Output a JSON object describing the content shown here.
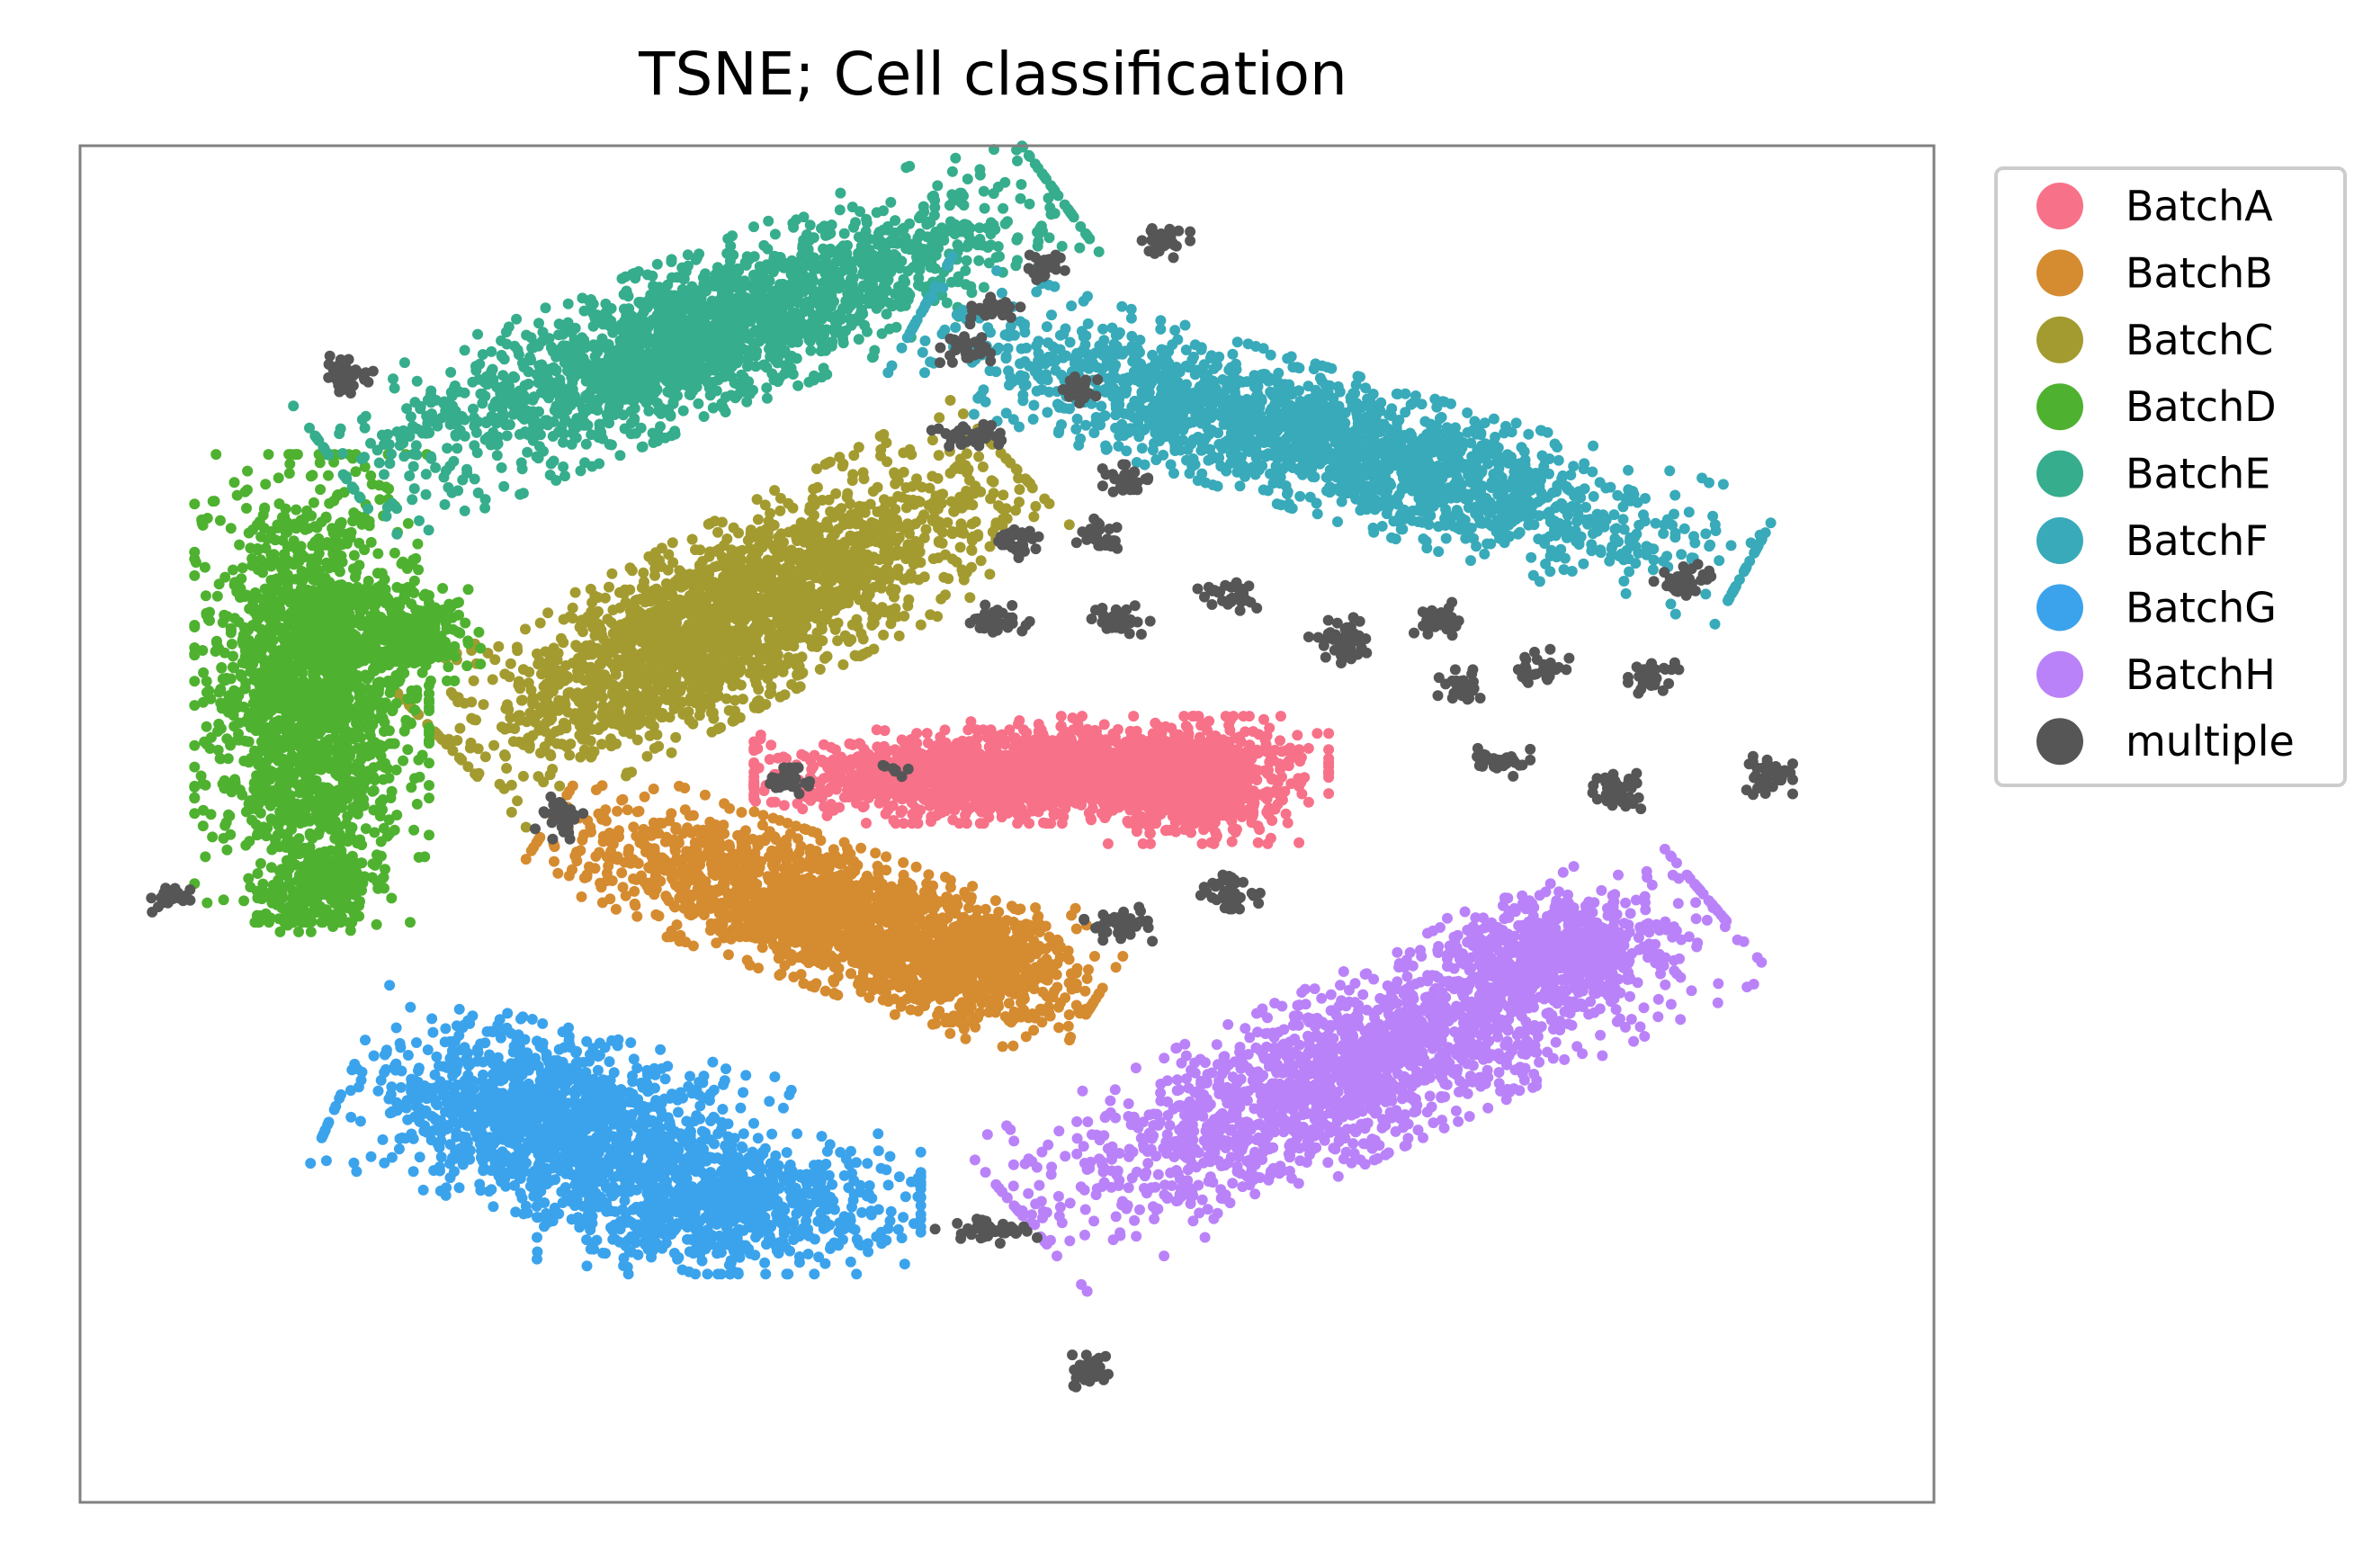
{
  "chart_data": {
    "type": "scatter",
    "title": "TSNE; Cell classification",
    "xlabel": "",
    "ylabel": "",
    "xlim": [
      -100,
      100
    ],
    "ylim": [
      -100,
      100
    ],
    "grid": false,
    "axis_ticks": false,
    "legend_position": "outside-top-right",
    "series": [
      {
        "name": "BatchA",
        "color": "#f77189",
        "clusters": [
          {
            "center": [
              -2,
              7
            ],
            "spread": [
              11,
              3
            ],
            "angle": 0,
            "n": 1400
          },
          {
            "center": [
              14,
              9
            ],
            "spread": [
              9,
              3
            ],
            "angle": 0,
            "n": 700
          },
          {
            "center": [
              20,
              4
            ],
            "spread": [
              5,
              3
            ],
            "angle": 0,
            "n": 400
          }
        ]
      },
      {
        "name": "BatchB",
        "color": "#d58b30",
        "clusters": [
          {
            "center": [
              -20,
              -13
            ],
            "spread": [
              14,
              4.5
            ],
            "angle": -25,
            "n": 1700
          },
          {
            "center": [
              -4,
              -20
            ],
            "spread": [
              5,
              4
            ],
            "angle": 0,
            "n": 500
          }
        ]
      },
      {
        "name": "BatchC",
        "color": "#a39b30",
        "clusters": [
          {
            "center": [
              -29,
              31
            ],
            "spread": [
              16,
              5.5
            ],
            "angle": 35,
            "n": 2200
          }
        ]
      },
      {
        "name": "BatchD",
        "color": "#4fb130",
        "clusters": [
          {
            "center": [
              -75,
              20
            ],
            "spread": [
              5.5,
              15
            ],
            "angle": 0,
            "n": 1800
          },
          {
            "center": [
              -66,
              28
            ],
            "spread": [
              4,
              3
            ],
            "angle": 0,
            "n": 300
          },
          {
            "center": [
              -74,
              -9
            ],
            "spread": [
              3,
              3
            ],
            "angle": 0,
            "n": 200
          }
        ]
      },
      {
        "name": "BatchE",
        "color": "#36ad8c",
        "clusters": [
          {
            "center": [
              -33,
              72
            ],
            "spread": [
              19,
              5
            ],
            "angle": 28,
            "n": 2000
          }
        ]
      },
      {
        "name": "BatchF",
        "color": "#38aab9",
        "clusters": [
          {
            "center": [
              35,
              56
            ],
            "spread": [
              21,
              4.5
            ],
            "angle": -22,
            "n": 2000
          }
        ]
      },
      {
        "name": "BatchG",
        "color": "#3ba3ec",
        "clusters": [
          {
            "center": [
              -49,
              -44
            ],
            "spread": [
              10,
              6
            ],
            "angle": -18,
            "n": 1300
          },
          {
            "center": [
              -30,
              -56
            ],
            "spread": [
              9,
              4.5
            ],
            "angle": 0,
            "n": 800
          }
        ]
      },
      {
        "name": "BatchH",
        "color": "#ba82f8",
        "clusters": [
          {
            "center": [
              39,
              -35
            ],
            "spread": [
              19,
              5.5
            ],
            "angle": 32,
            "n": 1900
          },
          {
            "center": [
              59,
              -19
            ],
            "spread": [
              5,
              4
            ],
            "angle": 0,
            "n": 400
          }
        ]
      },
      {
        "name": "multiple",
        "color": "#565656",
        "clusters": [
          {
            "center": [
              -71,
              66
            ],
            "spread": [
              1.2,
              1.3
            ],
            "angle": 0,
            "n": 35
          },
          {
            "center": [
              4,
              82
            ],
            "spread": [
              1.2,
              1.0
            ],
            "angle": 0,
            "n": 25
          },
          {
            "center": [
              17,
              86
            ],
            "spread": [
              1.2,
              1.2
            ],
            "angle": 0,
            "n": 30
          },
          {
            "center": [
              -2,
              76
            ],
            "spread": [
              1.5,
              1.0
            ],
            "angle": 0,
            "n": 30
          },
          {
            "center": [
              -5,
              70
            ],
            "spread": [
              1.4,
              1.0
            ],
            "angle": 0,
            "n": 30
          },
          {
            "center": [
              -4,
              57
            ],
            "spread": [
              1.8,
              0.9
            ],
            "angle": 0,
            "n": 35
          },
          {
            "center": [
              8,
              64
            ],
            "spread": [
              1.0,
              1.2
            ],
            "angle": 0,
            "n": 25
          },
          {
            "center": [
              13,
              51
            ],
            "spread": [
              1.2,
              1.2
            ],
            "angle": 0,
            "n": 35
          },
          {
            "center": [
              1,
              42
            ],
            "spread": [
              1.3,
              1.2
            ],
            "angle": 0,
            "n": 30
          },
          {
            "center": [
              10,
              42
            ],
            "spread": [
              1.3,
              1.3
            ],
            "angle": 0,
            "n": 30
          },
          {
            "center": [
              -1,
              30
            ],
            "spread": [
              1.5,
              1.0
            ],
            "angle": 0,
            "n": 35
          },
          {
            "center": [
              12,
              30
            ],
            "spread": [
              1.5,
              1.0
            ],
            "angle": 0,
            "n": 35
          },
          {
            "center": [
              24,
              34
            ],
            "spread": [
              1.5,
              1.1
            ],
            "angle": 0,
            "n": 30
          },
          {
            "center": [
              36,
              27
            ],
            "spread": [
              1.5,
              1.5
            ],
            "angle": 0,
            "n": 40
          },
          {
            "center": [
              46,
              30
            ],
            "spread": [
              1.2,
              1.2
            ],
            "angle": 0,
            "n": 30
          },
          {
            "center": [
              49,
              20
            ],
            "spread": [
              1.2,
              1.2
            ],
            "angle": 0,
            "n": 30
          },
          {
            "center": [
              58,
              23
            ],
            "spread": [
              1.3,
              1.2
            ],
            "angle": 0,
            "n": 30
          },
          {
            "center": [
              73,
              36
            ],
            "spread": [
              1.4,
              1.0
            ],
            "angle": 0,
            "n": 35
          },
          {
            "center": [
              70,
              22
            ],
            "spread": [
              1.3,
              1.2
            ],
            "angle": 0,
            "n": 30
          },
          {
            "center": [
              53,
              9
            ],
            "spread": [
              1.5,
              1.0
            ],
            "angle": 0,
            "n": 30
          },
          {
            "center": [
              66,
              5
            ],
            "spread": [
              1.5,
              1.2
            ],
            "angle": 0,
            "n": 40
          },
          {
            "center": [
              82,
              7
            ],
            "spread": [
              1.2,
              1.3
            ],
            "angle": 0,
            "n": 35
          },
          {
            "center": [
              -48,
              1
            ],
            "spread": [
              1.3,
              1.4
            ],
            "angle": 0,
            "n": 35
          },
          {
            "center": [
              -24,
              6
            ],
            "spread": [
              1.4,
              1.0
            ],
            "angle": 0,
            "n": 30
          },
          {
            "center": [
              12,
              -15
            ],
            "spread": [
              1.6,
              1.3
            ],
            "angle": 0,
            "n": 40
          },
          {
            "center": [
              24,
              -10
            ],
            "spread": [
              1.5,
              1.1
            ],
            "angle": 0,
            "n": 35
          },
          {
            "center": [
              -90,
              -11
            ],
            "spread": [
              1.0,
              1.0
            ],
            "angle": 0,
            "n": 25
          },
          {
            "center": [
              -2,
              -60
            ],
            "spread": [
              2.5,
              0.8
            ],
            "angle": 0,
            "n": 40
          },
          {
            "center": [
              9,
              -80
            ],
            "spread": [
              1.1,
              1.3
            ],
            "angle": 0,
            "n": 35
          },
          {
            "center": [
              -12,
              8
            ],
            "spread": [
              0.6,
              0.6
            ],
            "angle": 0,
            "n": 8
          }
        ]
      }
    ]
  }
}
